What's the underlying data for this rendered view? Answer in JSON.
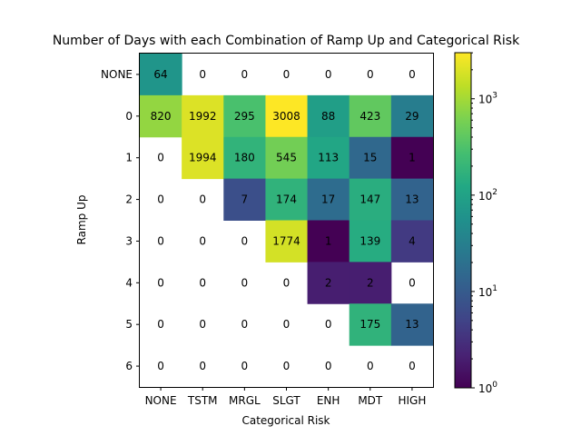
{
  "chart_data": {
    "type": "heatmap",
    "title": "Number of Days with each Combination of Ramp Up and Categorical Risk",
    "xlabel": "Categorical Risk",
    "ylabel": "Ramp Up",
    "x_categories": [
      "NONE",
      "TSTM",
      "MRGL",
      "SLGT",
      "ENH",
      "MDT",
      "HIGH"
    ],
    "y_categories": [
      "NONE",
      "0",
      "1",
      "2",
      "3",
      "4",
      "5",
      "6"
    ],
    "values": [
      [
        64,
        0,
        0,
        0,
        0,
        0,
        0
      ],
      [
        820,
        1992,
        295,
        3008,
        88,
        423,
        29
      ],
      [
        0,
        1994,
        180,
        545,
        113,
        15,
        1
      ],
      [
        0,
        0,
        7,
        174,
        17,
        147,
        13
      ],
      [
        0,
        0,
        0,
        1774,
        1,
        139,
        4
      ],
      [
        0,
        0,
        0,
        0,
        2,
        2,
        0
      ],
      [
        0,
        0,
        0,
        0,
        0,
        175,
        13
      ],
      [
        0,
        0,
        0,
        0,
        0,
        0,
        0
      ]
    ],
    "color_scale": "log",
    "colormap": "viridis",
    "zero_cells": "blank",
    "colorbar": {
      "vmin": 1,
      "vmax": 3008,
      "ticks": [
        {
          "base": "10",
          "exp": "0",
          "value": 1
        },
        {
          "base": "10",
          "exp": "1",
          "value": 10
        },
        {
          "base": "10",
          "exp": "2",
          "value": 100
        },
        {
          "base": "10",
          "exp": "3",
          "value": 1000
        }
      ]
    }
  }
}
